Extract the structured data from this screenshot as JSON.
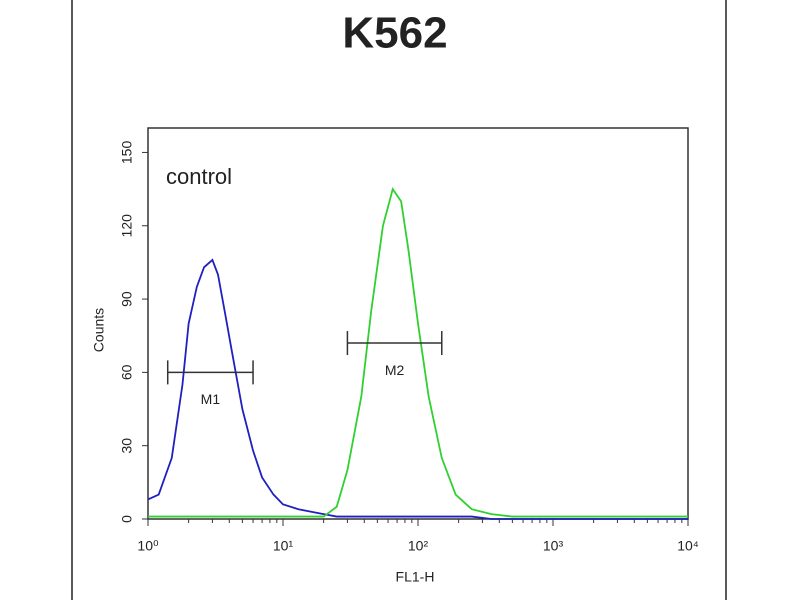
{
  "chart_data": {
    "type": "line",
    "title": "K562",
    "xlabel": "FL1-H",
    "ylabel": "Counts",
    "annotation": "control",
    "xscale": "log",
    "xlim": [
      1,
      10000
    ],
    "xticks": [
      {
        "value": 1,
        "label": "10⁰"
      },
      {
        "value": 10,
        "label": "10¹"
      },
      {
        "value": 100,
        "label": "10²"
      },
      {
        "value": 1000,
        "label": "10³"
      },
      {
        "value": 10000,
        "label": "10⁴"
      }
    ],
    "ylim": [
      0,
      160
    ],
    "yticks": [
      0,
      30,
      60,
      90,
      120,
      150
    ],
    "x": [
      1,
      1.2,
      1.5,
      1.8,
      2,
      2.3,
      2.6,
      3,
      3.3,
      3.7,
      4.2,
      5,
      6,
      7,
      8.5,
      10,
      13,
      16,
      20,
      25,
      30,
      38,
      45,
      55,
      65,
      75,
      85,
      100,
      120,
      150,
      190,
      250,
      350,
      500,
      1000,
      3000,
      10000
    ],
    "series": [
      {
        "color": "#2020c0",
        "values": [
          8,
          10,
          25,
          55,
          80,
          95,
          103,
          106,
          100,
          85,
          68,
          45,
          28,
          17,
          10,
          6,
          4,
          3,
          2,
          1,
          1,
          1,
          1,
          1,
          1,
          1,
          1,
          1,
          1,
          1,
          1,
          1,
          0,
          0,
          0,
          0,
          0
        ]
      },
      {
        "color": "#30d030",
        "values": [
          1,
          1,
          1,
          1,
          1,
          1,
          1,
          1,
          1,
          1,
          1,
          1,
          1,
          1,
          1,
          1,
          1,
          1,
          1,
          5,
          20,
          50,
          85,
          120,
          135,
          130,
          110,
          80,
          50,
          25,
          10,
          4,
          2,
          1,
          1,
          1,
          1
        ]
      }
    ],
    "markers": [
      {
        "label": "M1",
        "x": [
          1.4,
          6
        ],
        "y": 60
      },
      {
        "label": "M2",
        "x": [
          30,
          150
        ],
        "y": 72
      }
    ]
  }
}
